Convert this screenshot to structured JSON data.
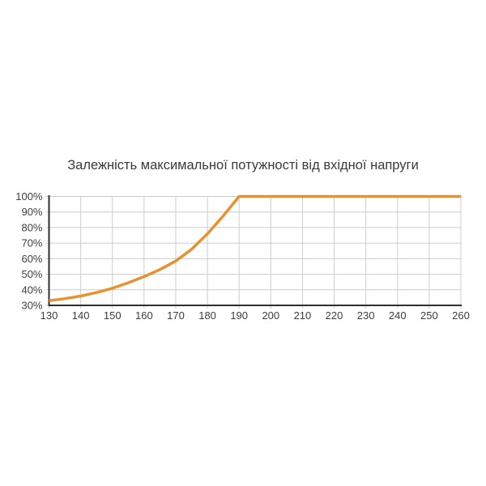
{
  "page": {
    "background": "#ffffff"
  },
  "chart_data": {
    "type": "line",
    "title": "Залежність максимальної потужності від вхідної напруги",
    "xlabel": "",
    "ylabel": "",
    "xlim": [
      130,
      260
    ],
    "ylim": [
      30,
      100
    ],
    "grid": true,
    "legend": "none",
    "x_ticks": [
      130,
      140,
      150,
      160,
      170,
      180,
      190,
      200,
      210,
      220,
      230,
      240,
      250,
      260
    ],
    "x_tick_labels": [
      "130",
      "140",
      "150",
      "160",
      "170",
      "180",
      "190",
      "200",
      "210",
      "220",
      "230",
      "240",
      "250",
      "260"
    ],
    "y_ticks": [
      30,
      40,
      50,
      60,
      70,
      80,
      90,
      100
    ],
    "y_tick_labels": [
      "30%",
      "40%",
      "50%",
      "60%",
      "70%",
      "80%",
      "90%",
      "100%"
    ],
    "series": [
      {
        "name": "max-power-percent-vs-input-voltage",
        "color": "#E8912F",
        "points": [
          [
            130,
            33
          ],
          [
            135,
            34.3
          ],
          [
            140,
            36
          ],
          [
            145,
            38.2
          ],
          [
            150,
            41
          ],
          [
            155,
            44.5
          ],
          [
            160,
            48.5
          ],
          [
            165,
            53
          ],
          [
            170,
            58.5
          ],
          [
            175,
            66
          ],
          [
            180,
            76
          ],
          [
            185,
            87.5
          ],
          [
            190,
            100
          ],
          [
            200,
            100
          ],
          [
            210,
            100
          ],
          [
            220,
            100
          ],
          [
            230,
            100
          ],
          [
            240,
            100
          ],
          [
            250,
            100
          ],
          [
            260,
            100
          ]
        ]
      }
    ],
    "colors": {
      "line": "#E8912F",
      "grid": "#CCCCCC",
      "axis": "#2F2F2F",
      "tick_text": "#3D3D3D",
      "title_text": "#3A3A3A"
    }
  }
}
